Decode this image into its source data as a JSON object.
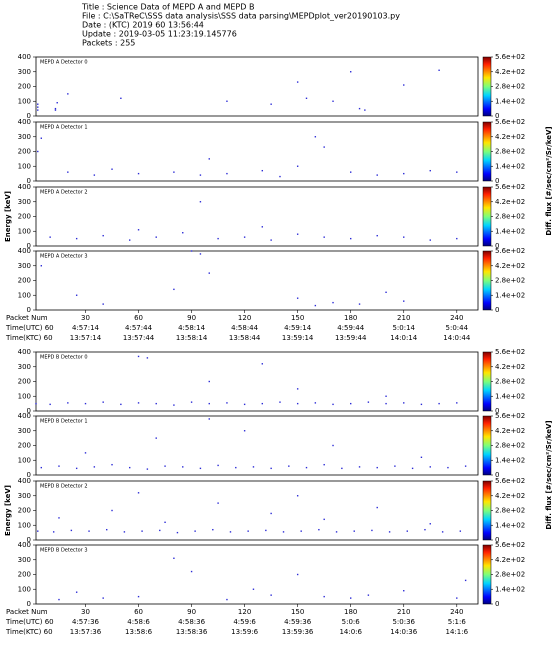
{
  "header": {
    "lines": [
      "Title : Science Data of MEPD A and MEPD B",
      "File : C:\\SaTReC\\SSS data analysis\\SSS data parsing\\MEPDplot_ver20190103.py",
      "Date : (KTC) 2019 60 13:56:44",
      "Update : 2019-03-05 11:23:19.145776",
      "Packets : 255"
    ]
  },
  "chart_data": [
    {
      "type": "scatter",
      "title": "MEPD A Detector 0",
      "color": "#2b2bd6",
      "xlim": [
        2,
        252
      ],
      "ylim": [
        0,
        400
      ],
      "yticks": [
        0,
        100,
        200,
        300,
        400
      ],
      "x": [
        3,
        3,
        3,
        13,
        13,
        14,
        50,
        20,
        110,
        135,
        150,
        155,
        185,
        188,
        210,
        230,
        180,
        170
      ],
      "values": [
        80,
        60,
        40,
        50,
        40,
        90,
        120,
        150,
        100,
        80,
        230,
        120,
        50,
        40,
        210,
        310,
        300,
        100
      ],
      "clim": [
        0,
        560
      ],
      "cticks": [
        0,
        {
          "value": 140,
          "label": "1.4e+02"
        },
        {
          "value": 280,
          "label": "2.8e+02"
        },
        {
          "value": 420,
          "label": "4.2e+02"
        },
        {
          "value": 560,
          "label": "5.6e+02"
        }
      ]
    },
    {
      "type": "scatter",
      "title": "MEPD A Detector 1",
      "color": "#2b2bd6",
      "xlim": [
        2,
        252
      ],
      "ylim": [
        0,
        400
      ],
      "yticks": [
        0,
        100,
        200,
        300,
        400
      ],
      "x": [
        5,
        3,
        20,
        35,
        60,
        80,
        95,
        110,
        130,
        140,
        150,
        165,
        180,
        195,
        210,
        225,
        240,
        160,
        100,
        45
      ],
      "values": [
        290,
        200,
        60,
        40,
        50,
        60,
        40,
        50,
        70,
        30,
        100,
        230,
        60,
        40,
        50,
        70,
        60,
        300,
        150,
        80
      ],
      "clim": [
        0,
        560
      ],
      "cticks": [
        0,
        {
          "value": 140,
          "label": "1.4e+02"
        },
        {
          "value": 280,
          "label": "2.8e+02"
        },
        {
          "value": 420,
          "label": "4.2e+02"
        },
        {
          "value": 560,
          "label": "5.6e+02"
        }
      ],
      "colorbar_label": "Diff. flux [#/sec/cm²/Sr/keV]"
    },
    {
      "type": "scatter",
      "title": "MEPD A Detector 2",
      "color": "#2b2bd6",
      "xlim": [
        2,
        252
      ],
      "ylim": [
        0,
        400
      ],
      "yticks": [
        0,
        100,
        200,
        300,
        400
      ],
      "x": [
        10,
        25,
        40,
        55,
        70,
        85,
        95,
        105,
        120,
        135,
        150,
        165,
        180,
        195,
        210,
        225,
        240,
        60,
        130
      ],
      "values": [
        60,
        50,
        70,
        40,
        60,
        90,
        300,
        50,
        60,
        40,
        80,
        60,
        50,
        70,
        60,
        40,
        50,
        110,
        130
      ],
      "clim": [
        0,
        560
      ],
      "cticks": [
        0,
        {
          "value": 140,
          "label": "1.4e+02"
        },
        {
          "value": 280,
          "label": "2.8e+02"
        },
        {
          "value": 420,
          "label": "4.2e+02"
        },
        {
          "value": 560,
          "label": "5.6e+02"
        }
      ],
      "ylabel": "Energy [keV]"
    },
    {
      "type": "scatter",
      "title": "MEPD A Detector 3",
      "color": "#2b2bd6",
      "xlim": [
        2,
        252
      ],
      "ylim": [
        0,
        400
      ],
      "yticks": [
        0,
        100,
        200,
        300,
        400
      ],
      "x": [
        5,
        25,
        40,
        80,
        90,
        100,
        150,
        160,
        185,
        200,
        210,
        170,
        95
      ],
      "values": [
        300,
        100,
        40,
        140,
        400,
        250,
        80,
        30,
        40,
        120,
        60,
        50,
        380
      ],
      "clim": [
        0,
        560
      ],
      "cticks": [
        0,
        {
          "value": 140,
          "label": "1.4e+02"
        },
        {
          "value": 280,
          "label": "2.8e+02"
        },
        {
          "value": 420,
          "label": "4.2e+02"
        },
        {
          "value": 560,
          "label": "5.6e+02"
        }
      ],
      "xticks": [
        30,
        60,
        90,
        120,
        150,
        180,
        210,
        240
      ],
      "row_labels": [
        "Packet Num",
        "Time(UTC) 60",
        "Time(KTC) 60"
      ],
      "utc_labels": [
        "4:57:14",
        "4:57:44",
        "4:58:14",
        "4:58:44",
        "4:59:14",
        "4:59:44",
        "5:0:14",
        "5:0:44"
      ],
      "ktc_labels": [
        "13:57:14",
        "13:57:44",
        "13:58:14",
        "13:58:44",
        "13:59:14",
        "13:59:44",
        "14:0:14",
        "14:0:44"
      ]
    },
    {
      "type": "scatter",
      "title": "MEPD B Detector 0",
      "color": "#2b2bd6",
      "xlim": [
        2,
        252
      ],
      "ylim": [
        0,
        400
      ],
      "yticks": [
        0,
        100,
        200,
        300,
        400
      ],
      "x": [
        2,
        10,
        20,
        30,
        40,
        50,
        60,
        70,
        80,
        90,
        100,
        110,
        120,
        130,
        140,
        150,
        160,
        170,
        180,
        190,
        200,
        210,
        220,
        230,
        240,
        60,
        65,
        100,
        150,
        200,
        130
      ],
      "values": [
        50,
        45,
        55,
        50,
        60,
        45,
        55,
        50,
        40,
        60,
        50,
        55,
        45,
        50,
        60,
        50,
        55,
        45,
        50,
        60,
        50,
        55,
        45,
        50,
        55,
        370,
        360,
        200,
        150,
        100,
        320
      ],
      "clim": [
        0,
        560
      ],
      "cticks": [
        0,
        {
          "value": 140,
          "label": "1.4e+02"
        },
        {
          "value": 280,
          "label": "2.8e+02"
        },
        {
          "value": 420,
          "label": "4.2e+02"
        },
        {
          "value": 560,
          "label": "5.6e+02"
        }
      ]
    },
    {
      "type": "scatter",
      "title": "MEPD B Detector 1",
      "color": "#2b2bd6",
      "xlim": [
        2,
        252
      ],
      "ylim": [
        0,
        400
      ],
      "yticks": [
        0,
        100,
        200,
        300,
        400
      ],
      "x": [
        5,
        15,
        25,
        35,
        45,
        55,
        65,
        75,
        85,
        95,
        105,
        115,
        125,
        135,
        145,
        155,
        165,
        175,
        185,
        195,
        205,
        215,
        225,
        235,
        245,
        30,
        70,
        120,
        170,
        220,
        100
      ],
      "values": [
        50,
        60,
        45,
        55,
        70,
        50,
        40,
        60,
        55,
        45,
        65,
        50,
        55,
        45,
        60,
        50,
        70,
        45,
        55,
        50,
        60,
        45,
        55,
        50,
        60,
        150,
        250,
        300,
        200,
        120,
        380
      ],
      "clim": [
        0,
        560
      ],
      "cticks": [
        0,
        {
          "value": 140,
          "label": "1.4e+02"
        },
        {
          "value": 280,
          "label": "2.8e+02"
        },
        {
          "value": 420,
          "label": "4.2e+02"
        },
        {
          "value": 560,
          "label": "5.6e+02"
        }
      ],
      "colorbar_label": "Diff. flux [#/sec/cm²/Sr/keV]"
    },
    {
      "type": "scatter",
      "title": "MEPD B Detector 2",
      "color": "#2b2bd6",
      "xlim": [
        2,
        252
      ],
      "ylim": [
        0,
        400
      ],
      "yticks": [
        0,
        100,
        200,
        300,
        400
      ],
      "x": [
        3,
        12,
        22,
        32,
        42,
        52,
        62,
        72,
        82,
        92,
        102,
        112,
        122,
        132,
        142,
        152,
        162,
        172,
        182,
        192,
        202,
        212,
        222,
        232,
        242,
        15,
        45,
        75,
        105,
        135,
        165,
        195,
        225,
        60,
        150
      ],
      "values": [
        60,
        55,
        65,
        60,
        70,
        55,
        60,
        65,
        50,
        60,
        70,
        55,
        60,
        65,
        55,
        60,
        70,
        55,
        60,
        65,
        55,
        60,
        70,
        55,
        60,
        150,
        200,
        120,
        250,
        180,
        140,
        220,
        110,
        320,
        300
      ],
      "clim": [
        0,
        560
      ],
      "cticks": [
        0,
        {
          "value": 140,
          "label": "1.4e+02"
        },
        {
          "value": 280,
          "label": "2.8e+02"
        },
        {
          "value": 420,
          "label": "4.2e+02"
        },
        {
          "value": 560,
          "label": "5.6e+02"
        }
      ],
      "ylabel": "Energy [keV]"
    },
    {
      "type": "scatter",
      "title": "MEPD B Detector 3",
      "color": "#2b2bd6",
      "xlim": [
        2,
        252
      ],
      "ylim": [
        0,
        400
      ],
      "yticks": [
        0,
        100,
        200,
        300,
        400
      ],
      "x": [
        15,
        25,
        40,
        60,
        80,
        90,
        110,
        125,
        135,
        150,
        165,
        180,
        190,
        210,
        240,
        245
      ],
      "values": [
        30,
        80,
        40,
        50,
        310,
        220,
        30,
        100,
        60,
        200,
        50,
        40,
        60,
        90,
        40,
        160
      ],
      "clim": [
        0,
        560
      ],
      "cticks": [
        0,
        {
          "value": 140,
          "label": "1.4e+02"
        },
        {
          "value": 280,
          "label": "2.8e+02"
        },
        {
          "value": 420,
          "label": "4.2e+02"
        },
        {
          "value": 560,
          "label": "5.6e+02"
        }
      ],
      "xticks": [
        30,
        60,
        90,
        120,
        150,
        180,
        210,
        240
      ],
      "row_labels": [
        "Packet Num",
        "Time(UTC) 60",
        "Time(KTC) 60"
      ],
      "utc_labels": [
        "4:57:36",
        "4:58:6",
        "4:58:36",
        "4:59:6",
        "4:59:36",
        "5:0:6",
        "5:0:36",
        "5:1:6"
      ],
      "ktc_labels": [
        "13:57:36",
        "13:58:6",
        "13:58:36",
        "13:59:6",
        "13:59:36",
        "14:0:6",
        "14:0:36",
        "14:1:6"
      ]
    }
  ]
}
